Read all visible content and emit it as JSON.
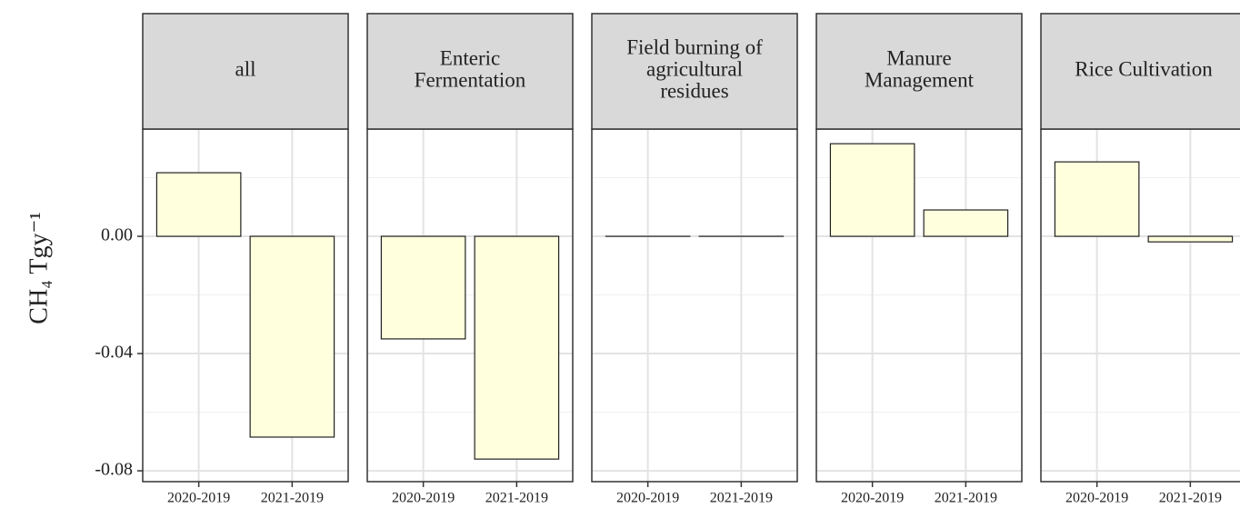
{
  "chart_data": {
    "type": "bar",
    "ylabel": "CH₄ Tgy⁻¹",
    "categories": [
      "2020-2019",
      "2021-2019"
    ],
    "color": "#ffffdd",
    "ylim": [
      -0.0837,
      0.0366
    ],
    "yticks": [
      {
        "value": 0,
        "label": "0.00"
      },
      {
        "value": -0.04,
        "label": "-0.04"
      },
      {
        "value": -0.08,
        "label": "-0.08"
      }
    ],
    "yminor": [
      0.02,
      -0.02,
      -0.06
    ],
    "grid": true,
    "facets": [
      {
        "title": [
          "all"
        ],
        "values": [
          0.0217,
          -0.0685
        ]
      },
      {
        "title": [
          "Enteric",
          "Fermentation"
        ],
        "values": [
          -0.035,
          -0.076
        ]
      },
      {
        "title": [
          "Field burning of",
          "agricultural",
          "residues"
        ],
        "values": [
          0,
          0
        ]
      },
      {
        "title": [
          "Manure",
          "Management"
        ],
        "values": [
          0.0316,
          0.009
        ]
      },
      {
        "title": [
          "Rice Cultivation"
        ],
        "values": [
          0.0254,
          -0.0019
        ]
      }
    ]
  }
}
